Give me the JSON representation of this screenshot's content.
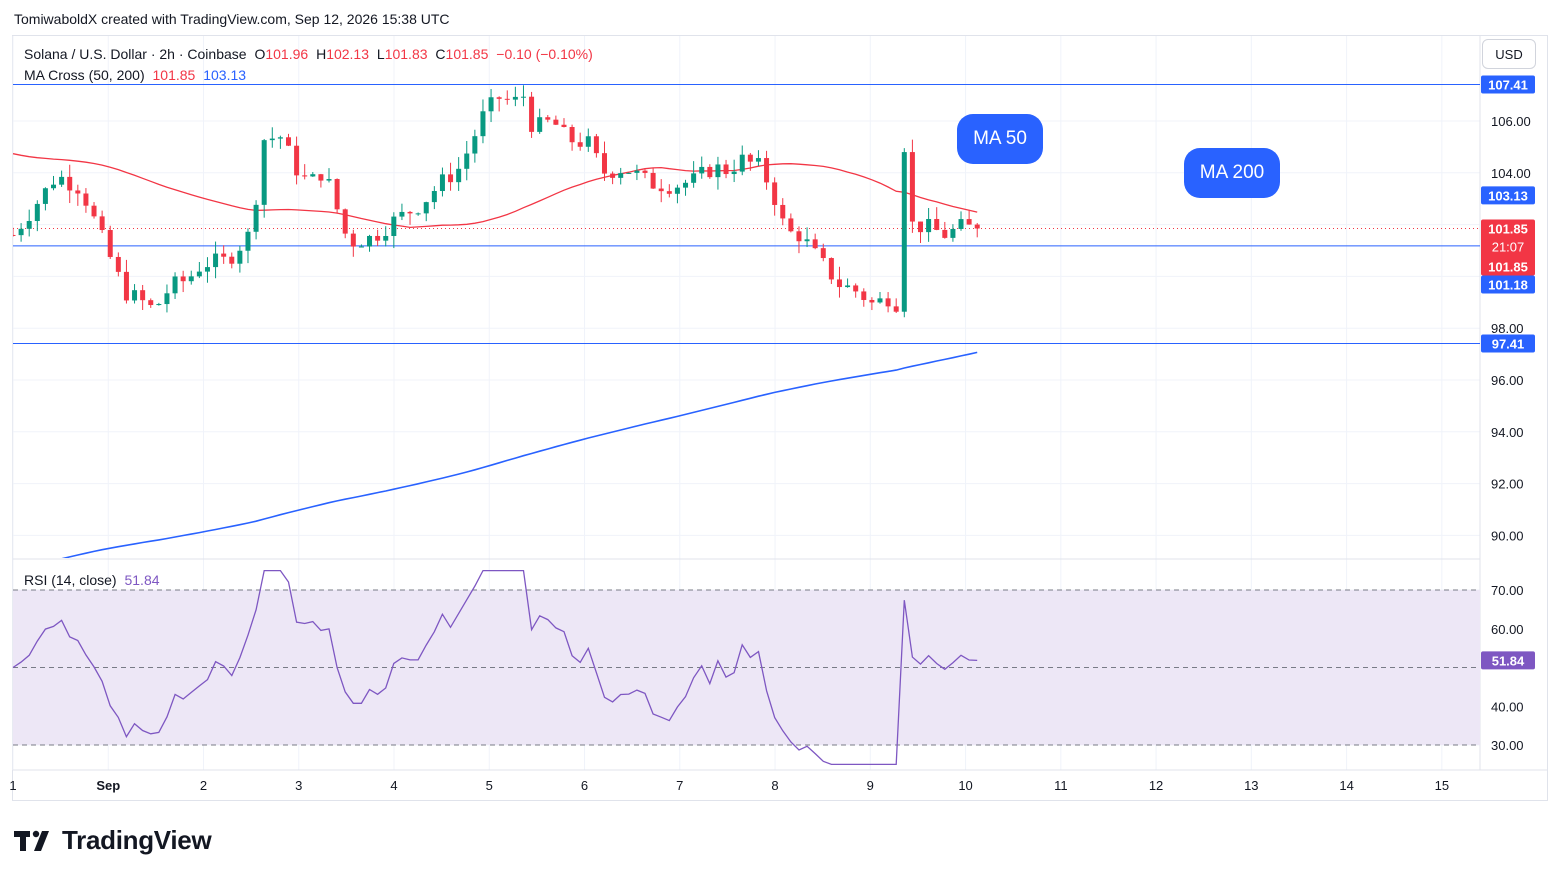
{
  "header": {
    "attribution": "TomiwaboldX created with TradingView.com, Sep 12, 2026 15:38 UTC"
  },
  "legend": {
    "symbol": "Solana / U.S. Dollar · 2h · Coinbase",
    "o_label": "O",
    "o_value": "101.96",
    "h_label": "H",
    "h_value": "102.13",
    "l_label": "L",
    "l_value": "101.83",
    "c_label": "C",
    "c_value": "101.85",
    "change": "−0.10 (−0.10%)",
    "ma_label": "MA Cross (50, 200)",
    "ma50_value": "101.85",
    "ma200_value": "103.13",
    "rsi_label": "RSI (14, close)",
    "rsi_value": "51.84"
  },
  "currency": "USD",
  "callouts": {
    "ma50": "MA 50",
    "ma200": "MA 200"
  },
  "branding": {
    "name": "TradingView"
  },
  "price_badges": {
    "top_line": "107.41",
    "ma200": "103.13",
    "last_price": "101.85",
    "countdown": "21:07",
    "ma50": "101.85",
    "mid_line": "101.18",
    "bottom_line": "97.41",
    "rsi": "51.84"
  },
  "colors": {
    "up": "#089981",
    "down": "#f23645",
    "ma50": "#f23645",
    "ma200": "#2962ff",
    "hline": "#2962ff",
    "rsi": "#7e57c2",
    "rsi_band": "#ede7f6",
    "grid": "#f0f3fa"
  },
  "chart_data": {
    "type": "candlestick",
    "title": "Solana / U.S. Dollar · 2h · Coinbase",
    "price_axis": {
      "ticks": [
        "106.00",
        "104.00",
        "98.00",
        "96.00",
        "94.00",
        "92.00",
        "90.00"
      ],
      "range": [
        89.4,
        107.9
      ]
    },
    "time_axis": {
      "ticks": [
        "1",
        "Sep",
        "2",
        "3",
        "4",
        "5",
        "6",
        "7",
        "8",
        "9",
        "10",
        "11",
        "12",
        "13",
        "14",
        "15"
      ]
    },
    "horizontal_lines": [
      107.41,
      101.18,
      97.41
    ],
    "last_price": 101.85,
    "candles_anchors": [
      {
        "t": 0,
        "close": 101.6
      },
      {
        "t": 0.2,
        "close": 102.6
      },
      {
        "t": 0.45,
        "close": 103.9
      },
      {
        "t": 0.7,
        "close": 103.4
      },
      {
        "t": 0.9,
        "close": 101.6
      },
      {
        "t": 1.15,
        "close": 99.4
      },
      {
        "t": 1.3,
        "close": 99.1
      },
      {
        "t": 1.45,
        "close": 98.7
      },
      {
        "t": 1.62,
        "close": 99.6
      },
      {
        "t": 1.8,
        "close": 99.9
      },
      {
        "t": 1.95,
        "close": 100.5
      },
      {
        "t": 2.2,
        "close": 100.6
      },
      {
        "t": 2.45,
        "close": 101.7
      },
      {
        "t": 2.58,
        "close": 105.3
      },
      {
        "t": 2.75,
        "close": 105.4
      },
      {
        "t": 2.95,
        "close": 103.9
      },
      {
        "t": 3.05,
        "close": 103.6
      },
      {
        "t": 3.2,
        "close": 104.1
      },
      {
        "t": 3.45,
        "close": 101.3
      },
      {
        "t": 3.7,
        "close": 101.5
      },
      {
        "t": 3.9,
        "close": 102.1
      },
      {
        "t": 4.2,
        "close": 102.8
      },
      {
        "t": 4.4,
        "close": 103.6
      },
      {
        "t": 4.6,
        "close": 104.2
      },
      {
        "t": 4.85,
        "close": 106.3
      },
      {
        "t": 5.0,
        "close": 106.9
      },
      {
        "t": 5.15,
        "close": 106.7
      },
      {
        "t": 5.25,
        "close": 107.0
      },
      {
        "t": 5.35,
        "close": 105.7
      },
      {
        "t": 5.55,
        "close": 106.0
      },
      {
        "t": 5.7,
        "close": 105.3
      },
      {
        "t": 5.95,
        "close": 105.1
      },
      {
        "t": 6.05,
        "close": 104.0
      },
      {
        "t": 6.3,
        "close": 104.2
      },
      {
        "t": 6.55,
        "close": 103.6
      },
      {
        "t": 6.8,
        "close": 103.5
      },
      {
        "t": 7.0,
        "close": 103.7
      },
      {
        "t": 7.2,
        "close": 104.2
      },
      {
        "t": 7.35,
        "close": 104.1
      },
      {
        "t": 7.5,
        "close": 104.5
      },
      {
        "t": 7.7,
        "close": 104.2
      },
      {
        "t": 7.85,
        "close": 102.9
      },
      {
        "t": 7.95,
        "close": 101.7
      },
      {
        "t": 8.1,
        "close": 101.6
      },
      {
        "t": 8.3,
        "close": 100.6
      },
      {
        "t": 8.5,
        "close": 99.7
      },
      {
        "t": 8.7,
        "close": 99.4
      },
      {
        "t": 8.85,
        "close": 98.9
      },
      {
        "t": 9.0,
        "close": 99.2
      },
      {
        "t": 9.12,
        "close": 98.9
      },
      {
        "t": 9.15,
        "close": 104.8
      },
      {
        "t": 9.25,
        "close": 102.0
      },
      {
        "t": 9.4,
        "close": 101.9
      },
      {
        "t": 9.6,
        "close": 101.6
      },
      {
        "t": 9.75,
        "close": 101.9
      },
      {
        "t": 9.92,
        "close": 101.85
      }
    ],
    "ma50": {
      "name": "MA 50",
      "value": 101.85
    },
    "ma200": {
      "name": "MA 200",
      "value": 103.13
    },
    "rsi": {
      "period": 14,
      "value": 51.84,
      "levels": [
        70,
        50,
        30
      ],
      "ticks": [
        "70.00",
        "60.00",
        "40.00",
        "30.00"
      ]
    }
  }
}
